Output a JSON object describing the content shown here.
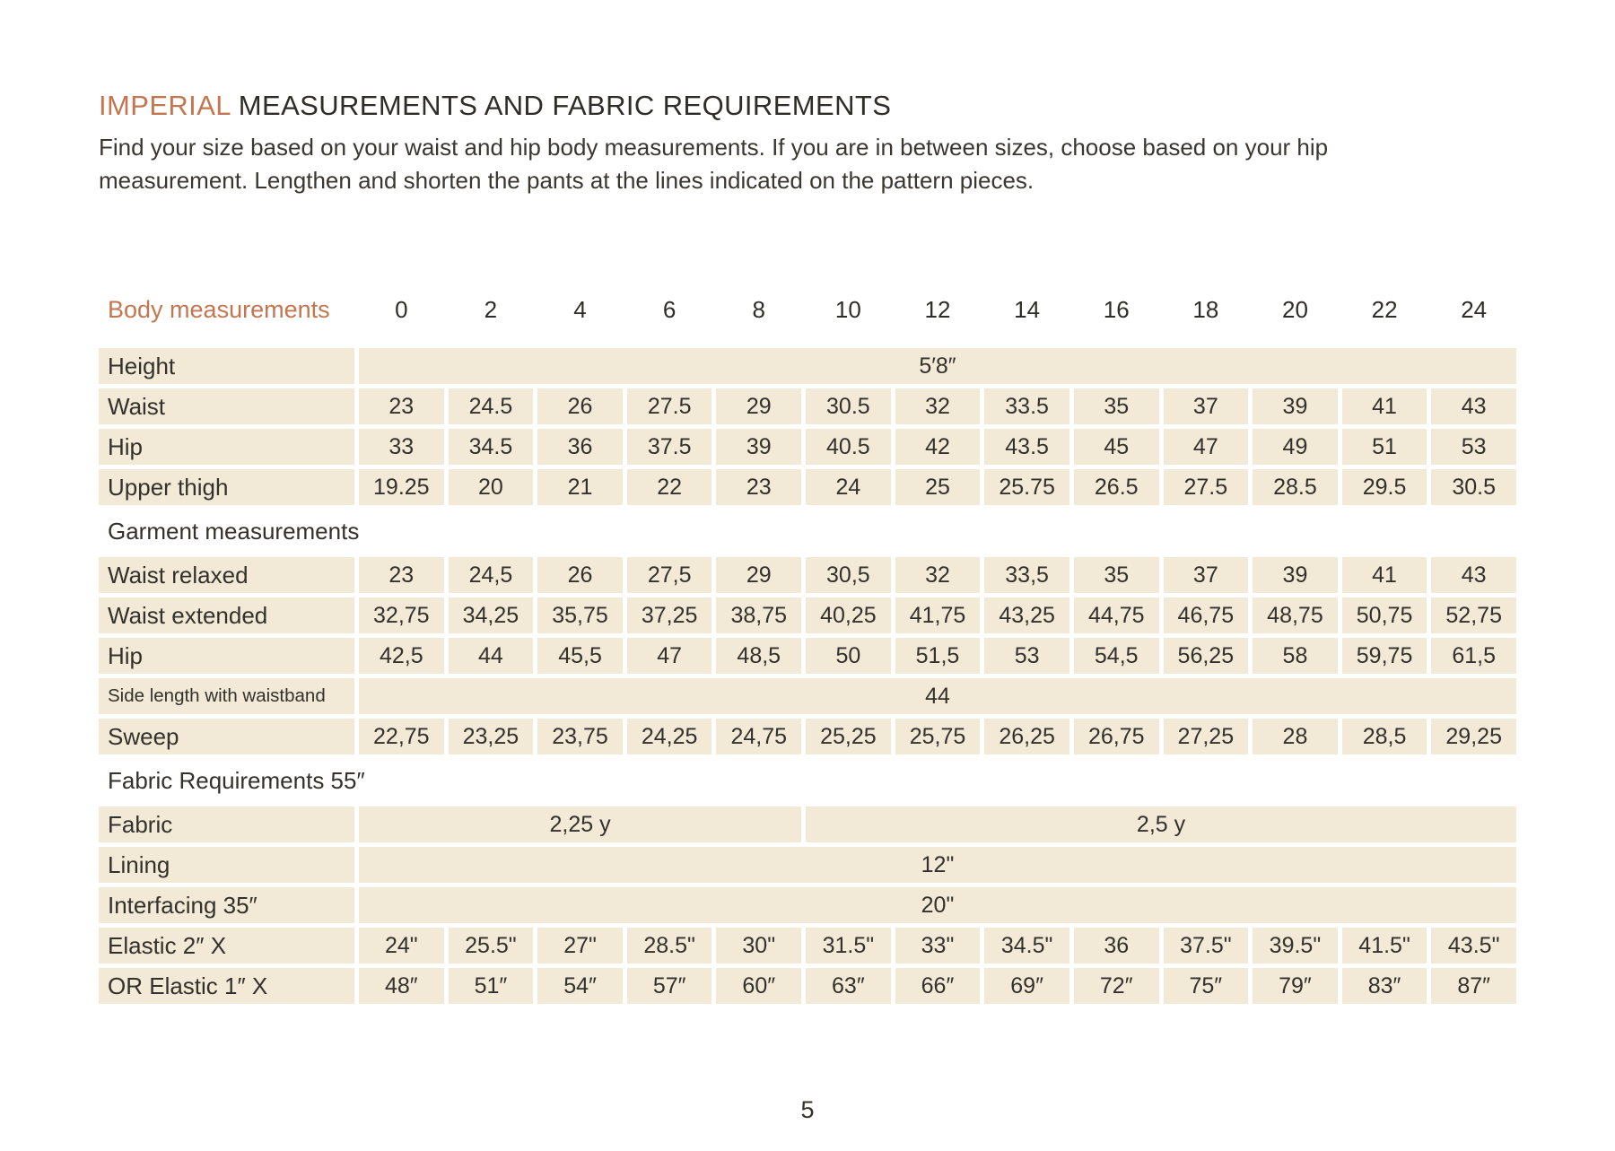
{
  "colors": {
    "accent": "#c3764f",
    "cell_bg": "#f2e9d6",
    "text": "#34312c"
  },
  "title": {
    "highlight": "IMPERIAL",
    "rest": "MEASUREMENTS AND FABRIC REQUIREMENTS"
  },
  "intro": {
    "lines": [
      "Find your size based on your waist and hip body measurements. If you are in between sizes, choose based on your hip",
      "measurement. Lengthen and shorten the pants at the lines indicated on the pattern pieces."
    ]
  },
  "table": {
    "corner_label": "Body measurements",
    "sizes": [
      "0",
      "2",
      "4",
      "6",
      "8",
      "10",
      "12",
      "14",
      "16",
      "18",
      "20",
      "22",
      "24"
    ],
    "rows": [
      {
        "kind": "merged",
        "label": "Height",
        "value": "5′8″"
      },
      {
        "kind": "cells",
        "label": "Waist",
        "values": [
          "23",
          "24.5",
          "26",
          "27.5",
          "29",
          "30.5",
          "32",
          "33.5",
          "35",
          "37",
          "39",
          "41",
          "43"
        ]
      },
      {
        "kind": "cells",
        "label": "Hip",
        "values": [
          "33",
          "34.5",
          "36",
          "37.5",
          "39",
          "40.5",
          "42",
          "43.5",
          "45",
          "47",
          "49",
          "51",
          "53"
        ]
      },
      {
        "kind": "cells",
        "label": "Upper thigh",
        "values": [
          "19.25",
          "20",
          "21",
          "22",
          "23",
          "24",
          "25",
          "25.75",
          "26.5",
          "27.5",
          "28.5",
          "29.5",
          "30.5"
        ]
      },
      {
        "kind": "section",
        "label": "Garment measurements"
      },
      {
        "kind": "cells",
        "label": "Waist relaxed",
        "values": [
          "23",
          "24,5",
          "26",
          "27,5",
          "29",
          "30,5",
          "32",
          "33,5",
          "35",
          "37",
          "39",
          "41",
          "43"
        ]
      },
      {
        "kind": "cells",
        "label": "Waist extended",
        "values": [
          "32,75",
          "34,25",
          "35,75",
          "37,25",
          "38,75",
          "40,25",
          "41,75",
          "43,25",
          "44,75",
          "46,75",
          "48,75",
          "50,75",
          "52,75"
        ]
      },
      {
        "kind": "cells",
        "label": "Hip",
        "values": [
          "42,5",
          "44",
          "45,5",
          "47",
          "48,5",
          "50",
          "51,5",
          "53",
          "54,5",
          "56,25",
          "58",
          "59,75",
          "61,5"
        ]
      },
      {
        "kind": "merged",
        "label": "Side length with waistband",
        "small_label": true,
        "value": "44"
      },
      {
        "kind": "cells",
        "label": "Sweep",
        "values": [
          "22,75",
          "23,25",
          "23,75",
          "24,25",
          "24,75",
          "25,25",
          "25,75",
          "26,25",
          "26,75",
          "27,25",
          "28",
          "28,5",
          "29,25"
        ]
      },
      {
        "kind": "section",
        "label": "Fabric Requirements 55″"
      },
      {
        "kind": "split",
        "label": "Fabric",
        "cells": [
          {
            "value": "2,25 y",
            "span": 5
          },
          {
            "value": "2,5 y",
            "span": 8
          }
        ]
      },
      {
        "kind": "merged",
        "label": "Lining",
        "value": "12\""
      },
      {
        "kind": "merged",
        "label": "Interfacing 35″",
        "value": "20\""
      },
      {
        "kind": "cells",
        "label": "Elastic 2″ X",
        "values": [
          "24\"",
          "25.5\"",
          "27\"",
          "28.5\"",
          "30\"",
          "31.5\"",
          "33\"",
          "34.5\"",
          "36",
          "37.5\"",
          "39.5\"",
          "41.5\"",
          "43.5\""
        ]
      },
      {
        "kind": "cells",
        "label": "OR Elastic 1″ X",
        "values": [
          "48″",
          "51″",
          "54″",
          "57″",
          "60″",
          "63″",
          "66″",
          "69″",
          "72″",
          "75″",
          "79″",
          "83″",
          "87″"
        ]
      }
    ]
  },
  "page": {
    "number": "5"
  }
}
